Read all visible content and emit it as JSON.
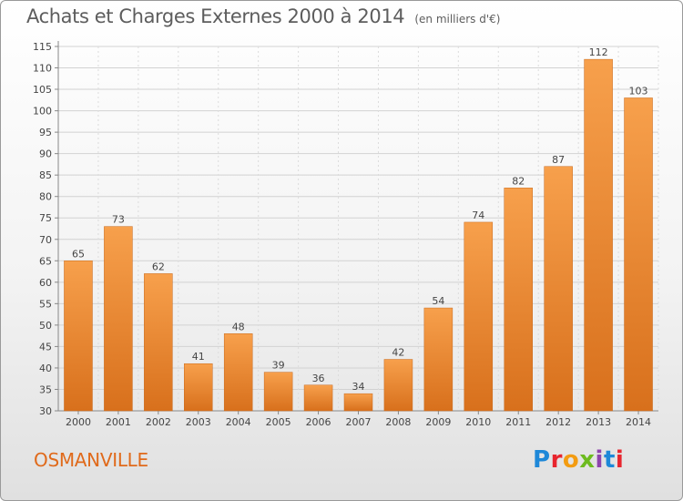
{
  "header": {
    "title": "Achats et Charges Externes 2000 à 2014",
    "unit": "(en milliers d'€)"
  },
  "footer": {
    "city": "OSMANVILLE",
    "brand_letters": [
      "P",
      "r",
      "o",
      "x",
      "i",
      "t",
      "i"
    ],
    "brand_colors": [
      "#1e88d8",
      "#e8252e",
      "#f39c12",
      "#6dbb1f",
      "#8e44ad",
      "#1e88d8",
      "#e8252e"
    ]
  },
  "colors": {
    "bar_light": "#f7a04c",
    "bar_dark": "#d8701c",
    "title": "#5d5d5d",
    "city": "#e06a1b"
  },
  "chart_data": {
    "type": "bar",
    "title": "Achats et Charges Externes 2000 à 2014",
    "subtitle": "(en milliers d'€)",
    "categories": [
      "2000",
      "2001",
      "2002",
      "2003",
      "2004",
      "2005",
      "2006",
      "2007",
      "2008",
      "2009",
      "2010",
      "2011",
      "2012",
      "2013",
      "2014"
    ],
    "values": [
      65,
      73,
      62,
      41,
      48,
      39,
      36,
      34,
      42,
      54,
      74,
      82,
      87,
      112,
      103
    ],
    "ylim": [
      30,
      115
    ],
    "yticks": [
      30,
      35,
      40,
      45,
      50,
      55,
      60,
      65,
      70,
      75,
      80,
      85,
      90,
      95,
      100,
      105,
      110,
      115
    ],
    "grid": true,
    "data_labels": true
  }
}
